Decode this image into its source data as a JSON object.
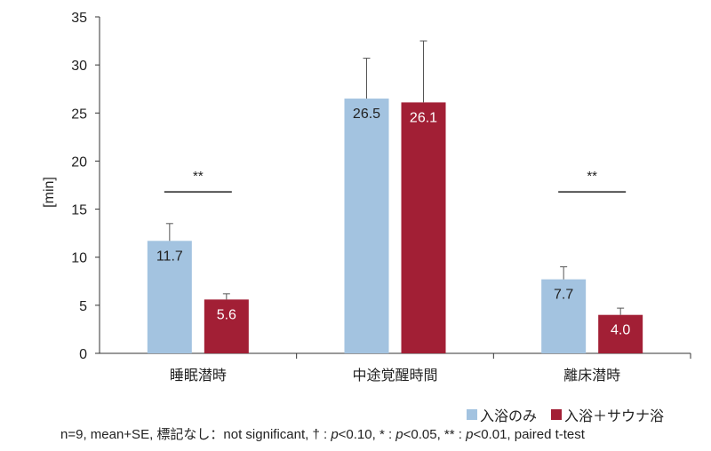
{
  "chart_data": {
    "type": "bar",
    "ylabel": "[min]",
    "ylim": [
      0,
      35
    ],
    "yticks": [
      0,
      5,
      10,
      15,
      20,
      25,
      30,
      35
    ],
    "categories": [
      "睡眠潜時",
      "中途覚醒時間",
      "離床潜時"
    ],
    "series": [
      {
        "name": "入浴のみ",
        "color": "#a3c3e0",
        "values": [
          11.7,
          26.5,
          7.7
        ],
        "labels": [
          "11.7",
          "26.5",
          "7.7"
        ],
        "se": [
          1.8,
          4.2,
          1.3
        ]
      },
      {
        "name": "入浴＋サウナ浴",
        "color": "#a21f35",
        "values": [
          5.6,
          26.1,
          4.0
        ],
        "labels": [
          "5.6",
          "26.1",
          "4.0"
        ],
        "se": [
          0.6,
          6.4,
          0.7
        ]
      }
    ],
    "significance": [
      {
        "category_index": 0,
        "label": "**",
        "y": 16.8
      },
      {
        "category_index": 2,
        "label": "**",
        "y": 16.8
      }
    ],
    "legend_position": "bottom-right",
    "grid": false
  },
  "footnote": {
    "part1": "n=9, mean+SE, 標記なし：not significant, † : ",
    "p1": "p",
    "part2": "<0.10, * : ",
    "p2": "p",
    "part3": "<0.05, ** : ",
    "p3": "p",
    "part4": "<0.01, paired t-test"
  }
}
